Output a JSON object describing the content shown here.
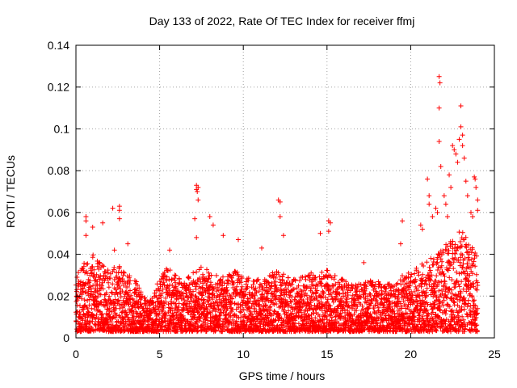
{
  "chart_data": {
    "type": "scatter",
    "title": "Day 133 of 2022, Rate Of TEC Index for receiver ffmj",
    "xlabel": "GPS time / hours",
    "ylabel": "ROTI / TECUs",
    "xlim": [
      0,
      25
    ],
    "ylim": [
      0,
      0.14
    ],
    "xticks": [
      0,
      5,
      10,
      15,
      20,
      25
    ],
    "xtick_labels": [
      "0",
      "5",
      "10",
      "15",
      "20",
      "25"
    ],
    "yticks": [
      0,
      0.02,
      0.04,
      0.06,
      0.08,
      0.1,
      0.12,
      0.14
    ],
    "ytick_labels": [
      "0",
      "0.02",
      "0.04",
      "0.06",
      "0.08",
      "0.1",
      "0.12",
      "0.14"
    ],
    "grid": true,
    "marker": "+",
    "series": [
      {
        "name": "ROTI",
        "color": "#ff0000",
        "envelope_hours": [
          0,
          0.5,
          1,
          1.5,
          2,
          2.5,
          3,
          3.5,
          4,
          4.5,
          5,
          5.5,
          6,
          6.5,
          7,
          7.5,
          8,
          8.5,
          9,
          9.5,
          10,
          10.5,
          11,
          11.5,
          12,
          12.5,
          13,
          13.5,
          14,
          14.5,
          15,
          15.5,
          16,
          16.5,
          17,
          17.5,
          18,
          18.5,
          19,
          19.5,
          20,
          20.5,
          21,
          21.5,
          22,
          22.5,
          23,
          23.5,
          24
        ],
        "envelope_max": [
          0.03,
          0.036,
          0.04,
          0.036,
          0.032,
          0.036,
          0.03,
          0.03,
          0.02,
          0.018,
          0.03,
          0.034,
          0.03,
          0.028,
          0.032,
          0.034,
          0.032,
          0.03,
          0.03,
          0.032,
          0.03,
          0.028,
          0.028,
          0.03,
          0.034,
          0.03,
          0.028,
          0.03,
          0.032,
          0.03,
          0.034,
          0.03,
          0.028,
          0.026,
          0.026,
          0.028,
          0.028,
          0.026,
          0.026,
          0.03,
          0.032,
          0.034,
          0.038,
          0.04,
          0.044,
          0.048,
          0.052,
          0.046,
          0.04
        ],
        "outliers": [
          {
            "x": 0.6,
            "y": 0.058
          },
          {
            "x": 0.6,
            "y": 0.056
          },
          {
            "x": 0.6,
            "y": 0.049
          },
          {
            "x": 1.0,
            "y": 0.053
          },
          {
            "x": 1.6,
            "y": 0.055
          },
          {
            "x": 2.2,
            "y": 0.062
          },
          {
            "x": 2.6,
            "y": 0.063
          },
          {
            "x": 2.6,
            "y": 0.061
          },
          {
            "x": 2.6,
            "y": 0.057
          },
          {
            "x": 2.3,
            "y": 0.042
          },
          {
            "x": 3.1,
            "y": 0.045
          },
          {
            "x": 5.6,
            "y": 0.042
          },
          {
            "x": 7.2,
            "y": 0.073
          },
          {
            "x": 7.2,
            "y": 0.071
          },
          {
            "x": 7.3,
            "y": 0.072
          },
          {
            "x": 7.25,
            "y": 0.07
          },
          {
            "x": 7.3,
            "y": 0.066
          },
          {
            "x": 7.1,
            "y": 0.057
          },
          {
            "x": 7.2,
            "y": 0.048
          },
          {
            "x": 8.0,
            "y": 0.058
          },
          {
            "x": 8.2,
            "y": 0.054
          },
          {
            "x": 8.8,
            "y": 0.049
          },
          {
            "x": 9.7,
            "y": 0.047
          },
          {
            "x": 11.1,
            "y": 0.043
          },
          {
            "x": 12.1,
            "y": 0.066
          },
          {
            "x": 12.2,
            "y": 0.065
          },
          {
            "x": 12.2,
            "y": 0.058
          },
          {
            "x": 12.4,
            "y": 0.049
          },
          {
            "x": 14.6,
            "y": 0.05
          },
          {
            "x": 15.1,
            "y": 0.056
          },
          {
            "x": 15.2,
            "y": 0.055
          },
          {
            "x": 15.1,
            "y": 0.051
          },
          {
            "x": 17.2,
            "y": 0.036
          },
          {
            "x": 19.5,
            "y": 0.056
          },
          {
            "x": 19.4,
            "y": 0.045
          },
          {
            "x": 20.6,
            "y": 0.054
          },
          {
            "x": 20.7,
            "y": 0.052
          },
          {
            "x": 21.0,
            "y": 0.076
          },
          {
            "x": 21.1,
            "y": 0.068
          },
          {
            "x": 21.1,
            "y": 0.064
          },
          {
            "x": 21.3,
            "y": 0.058
          },
          {
            "x": 21.5,
            "y": 0.062
          },
          {
            "x": 21.6,
            "y": 0.06
          },
          {
            "x": 21.7,
            "y": 0.125
          },
          {
            "x": 21.75,
            "y": 0.122
          },
          {
            "x": 21.7,
            "y": 0.11
          },
          {
            "x": 21.7,
            "y": 0.094
          },
          {
            "x": 21.8,
            "y": 0.082
          },
          {
            "x": 22.0,
            "y": 0.068
          },
          {
            "x": 22.1,
            "y": 0.064
          },
          {
            "x": 22.2,
            "y": 0.058
          },
          {
            "x": 22.3,
            "y": 0.078
          },
          {
            "x": 22.4,
            "y": 0.072
          },
          {
            "x": 22.5,
            "y": 0.092
          },
          {
            "x": 22.6,
            "y": 0.09
          },
          {
            "x": 22.7,
            "y": 0.088
          },
          {
            "x": 22.8,
            "y": 0.084
          },
          {
            "x": 22.9,
            "y": 0.095
          },
          {
            "x": 23.0,
            "y": 0.111
          },
          {
            "x": 23.0,
            "y": 0.101
          },
          {
            "x": 23.1,
            "y": 0.097
          },
          {
            "x": 23.1,
            "y": 0.092
          },
          {
            "x": 23.2,
            "y": 0.086
          },
          {
            "x": 23.3,
            "y": 0.075
          },
          {
            "x": 23.4,
            "y": 0.068
          },
          {
            "x": 23.6,
            "y": 0.06
          },
          {
            "x": 23.7,
            "y": 0.058
          },
          {
            "x": 23.8,
            "y": 0.077
          },
          {
            "x": 23.85,
            "y": 0.076
          },
          {
            "x": 23.9,
            "y": 0.072
          },
          {
            "x": 24.0,
            "y": 0.066
          },
          {
            "x": 24.0,
            "y": 0.061
          }
        ]
      }
    ]
  }
}
